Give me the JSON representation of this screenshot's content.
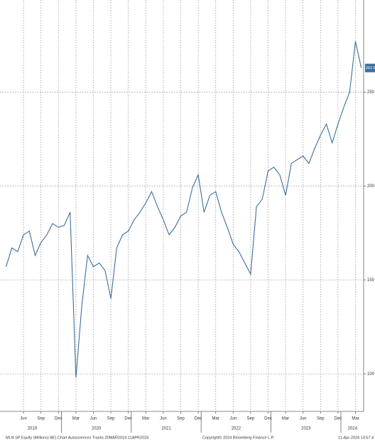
{
  "chart_data": {
    "type": "line",
    "x": [
      "2019-03",
      "2019-04",
      "2019-05",
      "2019-06",
      "2019-07",
      "2019-08",
      "2019-09",
      "2019-10",
      "2019-11",
      "2019-12",
      "2020-01",
      "2020-02",
      "2020-03",
      "2020-04",
      "2020-05",
      "2020-06",
      "2020-07",
      "2020-08",
      "2020-09",
      "2020-10",
      "2020-11",
      "2020-12",
      "2021-01",
      "2021-02",
      "2021-03",
      "2021-04",
      "2021-05",
      "2021-06",
      "2021-07",
      "2021-08",
      "2021-09",
      "2021-10",
      "2021-11",
      "2021-12",
      "2022-01",
      "2022-02",
      "2022-03",
      "2022-04",
      "2022-05",
      "2022-06",
      "2022-07",
      "2022-08",
      "2022-09",
      "2022-10",
      "2022-11",
      "2022-12",
      "2023-01",
      "2023-02",
      "2023-03",
      "2023-04",
      "2023-05",
      "2023-06",
      "2023-07",
      "2023-08",
      "2023-09",
      "2023-10",
      "2023-11",
      "2023-12",
      "2024-01",
      "2024-02",
      "2024-03",
      "2024-04"
    ],
    "series": [
      {
        "color": "#3d6f9e",
        "values": [
          157,
          167,
          165,
          174,
          176,
          163,
          170,
          174,
          180,
          178,
          179,
          186,
          98,
          136,
          163,
          157,
          159,
          155,
          140,
          167,
          174,
          176,
          182,
          186,
          191,
          197,
          189,
          182,
          174,
          178,
          184,
          186,
          199,
          206,
          186,
          195,
          197,
          186,
          178,
          169,
          165,
          159,
          153,
          189,
          193,
          208,
          210,
          206,
          195,
          212,
          214,
          216,
          212,
          220,
          227,
          233,
          223,
          233,
          242,
          250,
          277,
          262.8
        ]
      }
    ],
    "xticks": [
      {
        "value": "2019-06",
        "label": "Jun"
      },
      {
        "value": "2019-09",
        "label": "Sep"
      },
      {
        "value": "2019-12",
        "label": "Dec"
      },
      {
        "value": "2020-03",
        "label": "Mar"
      },
      {
        "value": "2020-06",
        "label": "Jun"
      },
      {
        "value": "2020-09",
        "label": "Sep"
      },
      {
        "value": "2020-12",
        "label": "Dec"
      },
      {
        "value": "2021-03",
        "label": "Mar"
      },
      {
        "value": "2021-06",
        "label": "Jun"
      },
      {
        "value": "2021-09",
        "label": "Sep"
      },
      {
        "value": "2021-12",
        "label": "Dec"
      },
      {
        "value": "2022-03",
        "label": "Mar"
      },
      {
        "value": "2022-06",
        "label": "Jun"
      },
      {
        "value": "2022-09",
        "label": "Sep"
      },
      {
        "value": "2022-12",
        "label": "Dec"
      },
      {
        "value": "2023-03",
        "label": "Mar"
      },
      {
        "value": "2023-06",
        "label": "Jun"
      },
      {
        "value": "2023-09",
        "label": "Sep"
      },
      {
        "value": "2023-12",
        "label": "Dec"
      },
      {
        "value": "2024-03",
        "label": "Mar"
      }
    ],
    "years": [
      "2019",
      "2020",
      "2021",
      "2022",
      "2023",
      "2024"
    ],
    "ylim": [
      80,
      299
    ],
    "yticks": [
      100,
      150,
      200,
      250
    ],
    "grid": true,
    "footer_left": "MLN SP Equity (Millions) BE) Chart Autosciences Tracks 20MAR2019-11APR2024",
    "footer_center": "Copyright© 2024 Bloomberg Finance L.P.",
    "footer_right": "11-Apr-2024 13:57:4"
  }
}
